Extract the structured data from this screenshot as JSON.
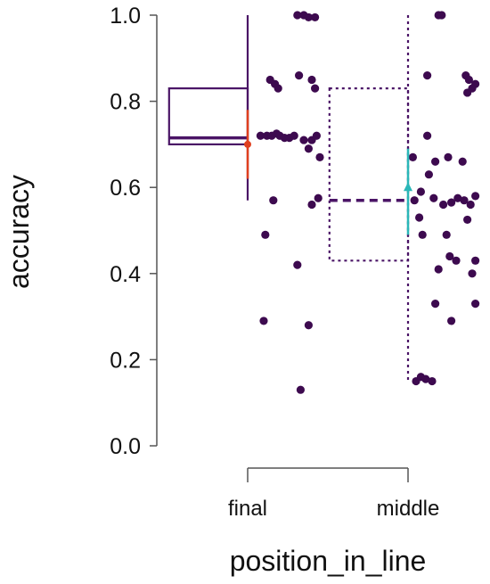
{
  "chart_data": {
    "type": "scatter",
    "title": "",
    "xlabel": "position_in_line",
    "ylabel": "accuracy",
    "ylim": [
      0,
      1
    ],
    "yticks": [
      "0.0",
      "0.2",
      "0.4",
      "0.6",
      "0.8",
      "1.0"
    ],
    "categories": [
      "final",
      "middle"
    ],
    "grid": false,
    "legend": "none",
    "colors": {
      "points": "#3d0a4f",
      "box_final": "#4a1466",
      "box_middle": "#4a1466",
      "mean_final": "#e0401f",
      "mean_middle": "#2ab7b8",
      "axis": "#555555"
    },
    "boxes": [
      {
        "category": "final",
        "style": "solid",
        "q1": 0.7,
        "median": 0.715,
        "q3": 0.83,
        "whisker_low": 0.57,
        "whisker_high": 1.0
      },
      {
        "category": "middle",
        "style": "dotted",
        "q1": 0.43,
        "median": 0.57,
        "q3": 0.83,
        "whisker_low": 0.15,
        "whisker_high": 1.0
      }
    ],
    "means": [
      {
        "category": "final",
        "mean": 0.7,
        "ci_low": 0.62,
        "ci_high": 0.78,
        "marker": "circle"
      },
      {
        "category": "middle",
        "mean": 0.6,
        "ci_low": 0.49,
        "ci_high": 0.69,
        "marker": "triangle"
      }
    ],
    "points": [
      {
        "category": "final",
        "x": 0.14,
        "y": 0.85
      },
      {
        "category": "final",
        "x": 0.17,
        "y": 0.84
      },
      {
        "category": "final",
        "x": 0.19,
        "y": 0.83
      },
      {
        "category": "final",
        "x": 0.32,
        "y": 0.86
      },
      {
        "category": "final",
        "x": 0.4,
        "y": 0.85
      },
      {
        "category": "final",
        "x": 0.42,
        "y": 0.83
      },
      {
        "category": "final",
        "x": 0.31,
        "y": 1.0
      },
      {
        "category": "final",
        "x": 0.35,
        "y": 1.0
      },
      {
        "category": "final",
        "x": 0.38,
        "y": 0.995
      },
      {
        "category": "final",
        "x": 0.42,
        "y": 0.995
      },
      {
        "category": "final",
        "x": 0.08,
        "y": 0.72
      },
      {
        "category": "final",
        "x": 0.12,
        "y": 0.72
      },
      {
        "category": "final",
        "x": 0.15,
        "y": 0.72
      },
      {
        "category": "final",
        "x": 0.18,
        "y": 0.725
      },
      {
        "category": "final",
        "x": 0.2,
        "y": 0.72
      },
      {
        "category": "final",
        "x": 0.23,
        "y": 0.715
      },
      {
        "category": "final",
        "x": 0.26,
        "y": 0.715
      },
      {
        "category": "final",
        "x": 0.29,
        "y": 0.72
      },
      {
        "category": "final",
        "x": 0.35,
        "y": 0.71
      },
      {
        "category": "final",
        "x": 0.4,
        "y": 0.71
      },
      {
        "category": "final",
        "x": 0.43,
        "y": 0.72
      },
      {
        "category": "final",
        "x": 0.38,
        "y": 0.69
      },
      {
        "category": "final",
        "x": 0.45,
        "y": 0.67
      },
      {
        "category": "final",
        "x": 0.16,
        "y": 0.57
      },
      {
        "category": "final",
        "x": 0.44,
        "y": 0.575
      },
      {
        "category": "final",
        "x": 0.4,
        "y": 0.56
      },
      {
        "category": "final",
        "x": 0.11,
        "y": 0.49
      },
      {
        "category": "final",
        "x": 0.31,
        "y": 0.42
      },
      {
        "category": "final",
        "x": 0.1,
        "y": 0.29
      },
      {
        "category": "final",
        "x": 0.38,
        "y": 0.28
      },
      {
        "category": "final",
        "x": 0.33,
        "y": 0.13
      },
      {
        "category": "middle",
        "x": 1.19,
        "y": 1.0
      },
      {
        "category": "middle",
        "x": 1.21,
        "y": 1.0
      },
      {
        "category": "middle",
        "x": 1.12,
        "y": 0.86
      },
      {
        "category": "middle",
        "x": 1.36,
        "y": 0.86
      },
      {
        "category": "middle",
        "x": 1.38,
        "y": 0.85
      },
      {
        "category": "middle",
        "x": 1.42,
        "y": 0.84
      },
      {
        "category": "middle",
        "x": 1.37,
        "y": 0.82
      },
      {
        "category": "middle",
        "x": 1.4,
        "y": 0.83
      },
      {
        "category": "middle",
        "x": 1.12,
        "y": 0.72
      },
      {
        "category": "middle",
        "x": 1.03,
        "y": 0.67
      },
      {
        "category": "middle",
        "x": 1.17,
        "y": 0.66
      },
      {
        "category": "middle",
        "x": 1.25,
        "y": 0.67
      },
      {
        "category": "middle",
        "x": 1.34,
        "y": 0.66
      },
      {
        "category": "middle",
        "x": 1.13,
        "y": 0.63
      },
      {
        "category": "middle",
        "x": 1.08,
        "y": 0.59
      },
      {
        "category": "middle",
        "x": 1.04,
        "y": 0.57
      },
      {
        "category": "middle",
        "x": 1.16,
        "y": 0.575
      },
      {
        "category": "middle",
        "x": 1.22,
        "y": 0.56
      },
      {
        "category": "middle",
        "x": 1.27,
        "y": 0.565
      },
      {
        "category": "middle",
        "x": 1.31,
        "y": 0.575
      },
      {
        "category": "middle",
        "x": 1.35,
        "y": 0.57
      },
      {
        "category": "middle",
        "x": 1.39,
        "y": 0.56
      },
      {
        "category": "middle",
        "x": 1.42,
        "y": 0.58
      },
      {
        "category": "middle",
        "x": 1.07,
        "y": 0.53
      },
      {
        "category": "middle",
        "x": 1.37,
        "y": 0.525
      },
      {
        "category": "middle",
        "x": 1.09,
        "y": 0.49
      },
      {
        "category": "middle",
        "x": 1.24,
        "y": 0.49
      },
      {
        "category": "middle",
        "x": 1.26,
        "y": 0.44
      },
      {
        "category": "middle",
        "x": 1.3,
        "y": 0.43
      },
      {
        "category": "middle",
        "x": 1.42,
        "y": 0.43
      },
      {
        "category": "middle",
        "x": 1.19,
        "y": 0.41
      },
      {
        "category": "middle",
        "x": 1.4,
        "y": 0.4
      },
      {
        "category": "middle",
        "x": 1.17,
        "y": 0.33
      },
      {
        "category": "middle",
        "x": 1.42,
        "y": 0.33
      },
      {
        "category": "middle",
        "x": 1.27,
        "y": 0.29
      },
      {
        "category": "middle",
        "x": 1.05,
        "y": 0.15
      },
      {
        "category": "middle",
        "x": 1.08,
        "y": 0.16
      },
      {
        "category": "middle",
        "x": 1.11,
        "y": 0.155
      },
      {
        "category": "middle",
        "x": 1.15,
        "y": 0.15
      }
    ]
  }
}
